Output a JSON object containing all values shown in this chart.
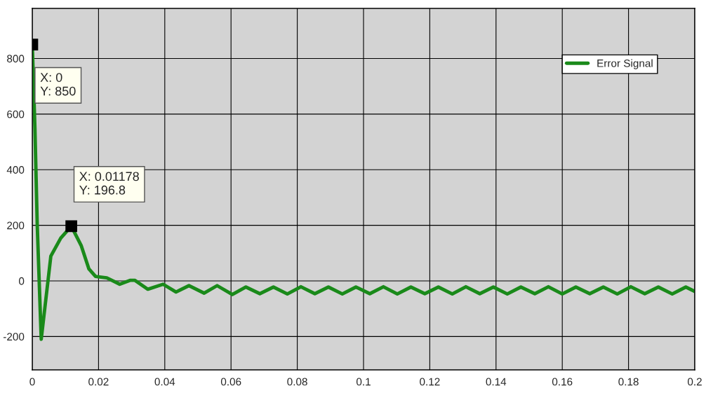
{
  "chart_data": {
    "type": "line",
    "xlim": [
      0,
      0.2
    ],
    "ylim": [
      -320,
      980
    ],
    "xticks": [
      0,
      0.02,
      0.04,
      0.06,
      0.08,
      0.1,
      0.12,
      0.14,
      0.16,
      0.18,
      0.2
    ],
    "yticks": [
      -200,
      0,
      200,
      400,
      600,
      800
    ],
    "grid": true,
    "legend": "top right",
    "marker": "none",
    "line_style": "solid",
    "annotations": [
      {
        "text": "X: 0\nY: 850",
        "x": 0,
        "y": 850
      },
      {
        "text": "X: 0.01178\nY: 196.8",
        "x": 0.01178,
        "y": 196.8
      }
    ],
    "series": [
      {
        "name": "Error Signal",
        "color": "#1a8a1a",
        "x": [
          0,
          0.0008,
          0.0015,
          0.0027,
          0.0056,
          0.0086,
          0.01178,
          0.0148,
          0.0171,
          0.0191,
          0.0225,
          0.0264,
          0.0295,
          0.031,
          0.0349,
          0.0395,
          0.0434,
          0.0473,
          0.0519,
          0.0558,
          0.0604,
          0.0645,
          0.0687,
          0.0728,
          0.077,
          0.0811,
          0.0853,
          0.0894,
          0.0936,
          0.0977,
          0.1019,
          0.106,
          0.1102,
          0.1143,
          0.1185,
          0.1226,
          0.1268,
          0.1309,
          0.1351,
          0.1392,
          0.1434,
          0.1475,
          0.1517,
          0.1558,
          0.16,
          0.1641,
          0.1683,
          0.1724,
          0.1766,
          0.1807,
          0.1849,
          0.189,
          0.1932,
          0.1973,
          0.2
        ],
        "values": [
          850,
          550,
          200,
          -210,
          89,
          154,
          196.8,
          126,
          43,
          16,
          11,
          -12,
          2,
          2,
          -30,
          -12,
          -40,
          -17,
          -44,
          -17,
          -49,
          -22,
          -46,
          -22,
          -47,
          -21,
          -46,
          -22,
          -47,
          -22,
          -46,
          -21,
          -47,
          -22,
          -46,
          -22,
          -47,
          -21,
          -46,
          -22,
          -47,
          -22,
          -46,
          -21,
          -47,
          -22,
          -46,
          -22,
          -47,
          -21,
          -46,
          -22,
          -47,
          -22,
          -38
        ]
      }
    ]
  }
}
